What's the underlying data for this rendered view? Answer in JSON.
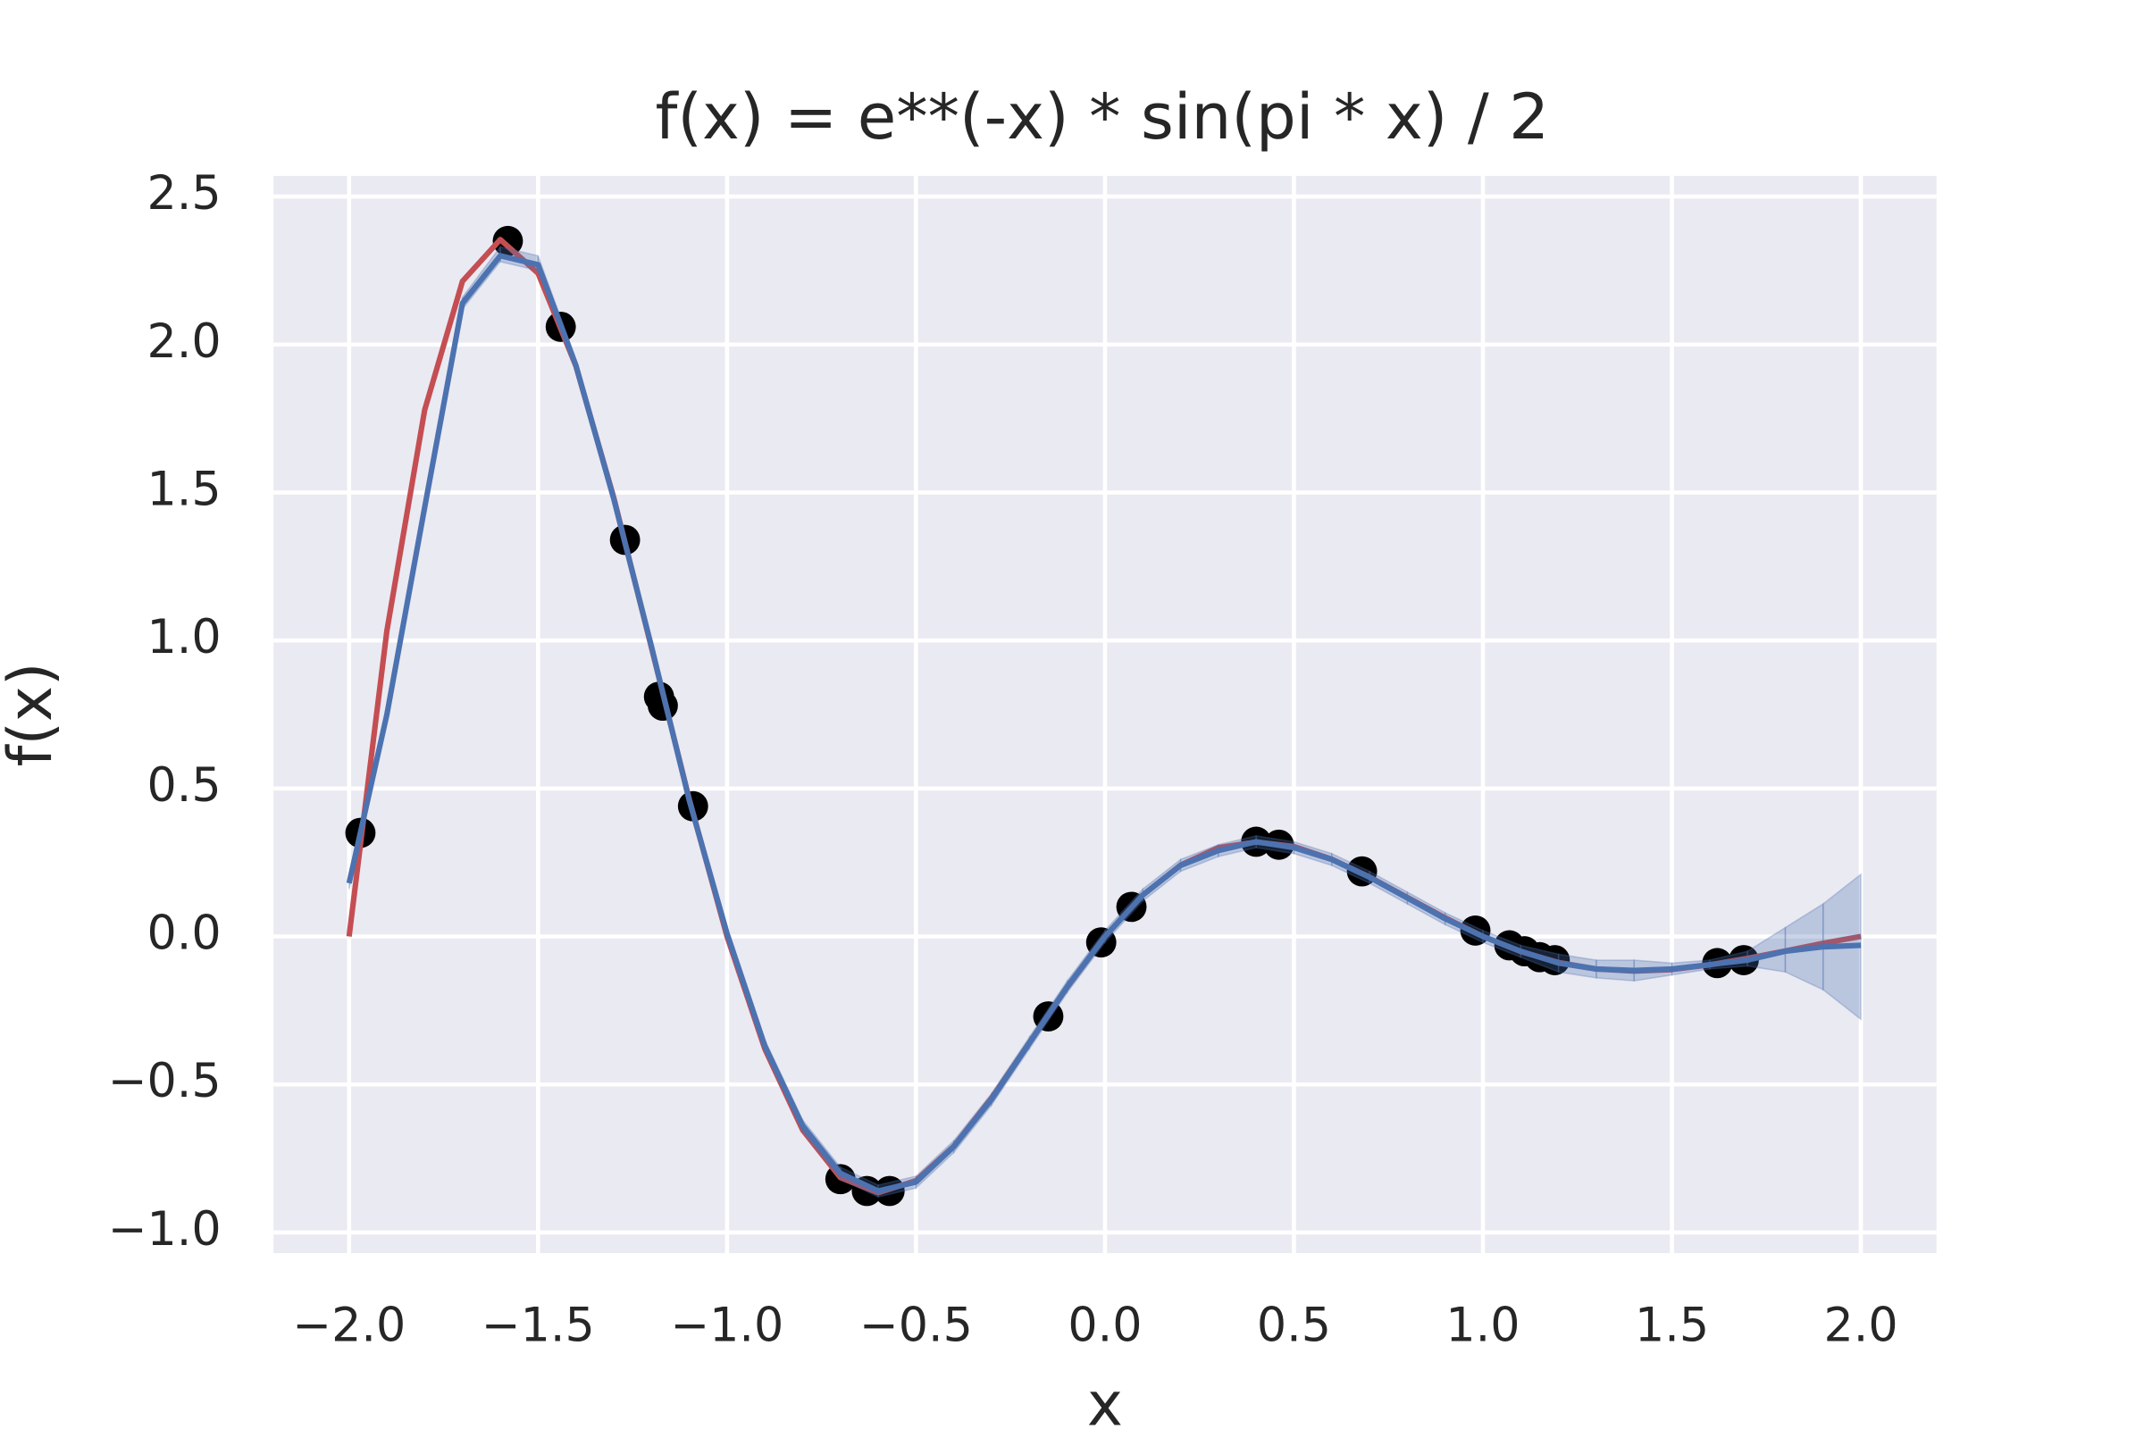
{
  "chart_data": {
    "type": "line",
    "title": "f(x) = e**(-x) * sin(pi * x) / 2",
    "x_label": "x",
    "y_label": "f(x)",
    "xlim": [
      -2.2,
      2.2
    ],
    "ylim": [
      -1.07,
      2.57
    ],
    "xticks": [
      {
        "value": -2.0,
        "label": "−2.0"
      },
      {
        "value": -1.5,
        "label": "−1.5"
      },
      {
        "value": -1.0,
        "label": "−1.0"
      },
      {
        "value": -0.5,
        "label": "−0.5"
      },
      {
        "value": 0.0,
        "label": "0.0"
      },
      0.5,
      {
        "value": 1.0,
        "label": "1.0"
      },
      1.5,
      {
        "value": 2.0,
        "label": "2.0"
      }
    ],
    "yticks": [
      {
        "value": -1.0,
        "label": "−1.0"
      },
      {
        "value": -0.5,
        "label": "−0.5"
      },
      {
        "value": 0.0,
        "label": "0.0"
      },
      0.5,
      {
        "value": 1.0,
        "label": "1.0"
      },
      1.5,
      {
        "value": 2.0,
        "label": "2.0"
      },
      2.5
    ],
    "grid": true,
    "background": "#eaeaf2",
    "x": [
      -2.0,
      -1.9,
      -1.8,
      -1.7,
      -1.6,
      -1.5,
      -1.4,
      -1.3,
      -1.2,
      -1.1,
      -1.0,
      -0.9,
      -0.8,
      -0.7,
      -0.6,
      -0.5,
      -0.4,
      -0.3,
      -0.2,
      -0.1,
      0.0,
      0.1,
      0.2,
      0.3,
      0.4,
      0.5,
      0.6,
      0.7,
      0.8,
      0.9,
      1.0,
      1.1,
      1.2,
      1.3,
      1.4,
      1.5,
      1.6,
      1.7,
      1.8,
      1.9,
      2.0
    ],
    "series": [
      {
        "color": "#c44e52",
        "values": [
          0,
          1.033,
          1.779,
          2.214,
          2.355,
          2.241,
          1.928,
          1.484,
          0.976,
          0.464,
          0,
          -0.38,
          -0.654,
          -0.815,
          -0.866,
          -0.825,
          -0.709,
          -0.546,
          -0.359,
          -0.171,
          0,
          0.14,
          0.241,
          0.3,
          0.319,
          0.304,
          0.261,
          0.201,
          0.132,
          0.063,
          0,
          -0.051,
          -0.088,
          -0.11,
          -0.117,
          -0.112,
          -0.096,
          -0.074,
          -0.049,
          -0.023,
          0
        ]
      },
      {
        "color": "#4c72b0",
        "values": [
          0.18,
          0.75,
          1.45,
          2.14,
          2.3,
          2.27,
          1.93,
          1.48,
          0.98,
          0.46,
          0.01,
          -0.37,
          -0.64,
          -0.8,
          -0.86,
          -0.83,
          -0.71,
          -0.55,
          -0.36,
          -0.17,
          0.0,
          0.14,
          0.24,
          0.29,
          0.32,
          0.3,
          0.26,
          0.2,
          0.13,
          0.06,
          0.0,
          -0.05,
          -0.09,
          -0.11,
          -0.115,
          -0.11,
          -0.095,
          -0.08,
          -0.05,
          -0.035,
          -0.03
        ],
        "lower": [
          0.16,
          0.73,
          1.43,
          2.12,
          2.28,
          2.25,
          1.91,
          1.46,
          0.96,
          0.44,
          -0.01,
          -0.39,
          -0.66,
          -0.82,
          -0.88,
          -0.85,
          -0.73,
          -0.57,
          -0.38,
          -0.19,
          -0.02,
          0.12,
          0.22,
          0.27,
          0.3,
          0.28,
          0.24,
          0.18,
          0.11,
          0.04,
          -0.02,
          -0.07,
          -0.12,
          -0.14,
          -0.15,
          -0.13,
          -0.11,
          -0.1,
          -0.12,
          -0.18,
          -0.28
        ],
        "upper": [
          0.2,
          0.77,
          1.47,
          2.16,
          2.33,
          2.3,
          1.95,
          1.5,
          1.0,
          0.48,
          0.03,
          -0.35,
          -0.62,
          -0.78,
          -0.84,
          -0.81,
          -0.69,
          -0.53,
          -0.34,
          -0.15,
          0.02,
          0.16,
          0.26,
          0.31,
          0.34,
          0.32,
          0.28,
          0.22,
          0.15,
          0.08,
          0.02,
          -0.03,
          -0.06,
          -0.08,
          -0.08,
          -0.09,
          -0.08,
          -0.05,
          0.03,
          0.11,
          0.21
        ]
      },
      {
        "type": "scatter",
        "color": "#000000",
        "x": [
          -1.97,
          -1.58,
          -1.44,
          -1.27,
          -1.18,
          -1.17,
          -1.09,
          -0.7,
          -0.63,
          -0.57,
          -0.15,
          -0.01,
          0.07,
          0.4,
          0.46,
          0.68,
          0.98,
          1.07,
          1.11,
          1.15,
          1.19,
          1.62,
          1.69
        ],
        "values": [
          0.35,
          2.35,
          2.06,
          1.34,
          0.81,
          0.78,
          0.44,
          -0.82,
          -0.86,
          -0.86,
          -0.27,
          -0.02,
          0.1,
          0.32,
          0.31,
          0.22,
          0.02,
          -0.03,
          -0.05,
          -0.07,
          -0.08,
          -0.09,
          -0.08
        ]
      }
    ]
  }
}
